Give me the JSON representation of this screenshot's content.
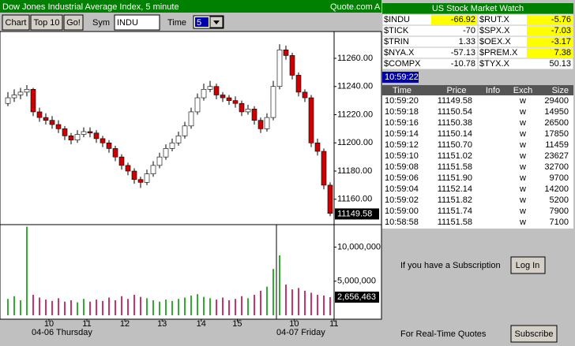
{
  "window": {
    "title": "Dow Jones Industrial Average Index, 5 minute",
    "source": "Quote.com",
    "corner": "A"
  },
  "toolbar": {
    "buttons": [
      "Chart",
      "Top 10",
      "Go!"
    ],
    "sym_label": "Sym",
    "sym_value": "INDU",
    "time_label": "Time",
    "time_value": "5"
  },
  "chart_data": {
    "type": "candlestick",
    "candles": [
      [
        11228,
        11236,
        11226,
        11232
      ],
      [
        11232,
        11238,
        11229,
        11234
      ],
      [
        11234,
        11239,
        11231,
        11236
      ],
      [
        11236,
        11241,
        11233,
        11238
      ],
      [
        11238,
        11239,
        11219,
        11222
      ],
      [
        11222,
        11225,
        11215,
        11218
      ],
      [
        11218,
        11221,
        11213,
        11216
      ],
      [
        11216,
        11219,
        11210,
        11213
      ],
      [
        11213,
        11216,
        11207,
        11210
      ],
      [
        11210,
        11212,
        11202,
        11205
      ],
      [
        11205,
        11207,
        11199,
        11202
      ],
      [
        11202,
        11209,
        11200,
        11206
      ],
      [
        11206,
        11211,
        11204,
        11208
      ],
      [
        11208,
        11211,
        11204,
        11207
      ],
      [
        11207,
        11209,
        11200,
        11203
      ],
      [
        11203,
        11205,
        11197,
        11200
      ],
      [
        11200,
        11202,
        11193,
        11196
      ],
      [
        11196,
        11198,
        11187,
        11190
      ],
      [
        11190,
        11192,
        11181,
        11184
      ],
      [
        11184,
        11186,
        11177,
        11180
      ],
      [
        11180,
        11182,
        11171,
        11174
      ],
      [
        11174,
        11176,
        11168,
        11172
      ],
      [
        11172,
        11181,
        11170,
        11178
      ],
      [
        11178,
        11187,
        11176,
        11184
      ],
      [
        11184,
        11193,
        11182,
        11190
      ],
      [
        11190,
        11199,
        11188,
        11196
      ],
      [
        11196,
        11203,
        11194,
        11200
      ],
      [
        11200,
        11208,
        11198,
        11205
      ],
      [
        11205,
        11215,
        11203,
        11212
      ],
      [
        11212,
        11225,
        11210,
        11222
      ],
      [
        11222,
        11235,
        11220,
        11232
      ],
      [
        11232,
        11242,
        11230,
        11238
      ],
      [
        11238,
        11244,
        11236,
        11240
      ],
      [
        11240,
        11242,
        11231,
        11234
      ],
      [
        11234,
        11236,
        11229,
        11232
      ],
      [
        11232,
        11234,
        11227,
        11230
      ],
      [
        11230,
        11233,
        11225,
        11228
      ],
      [
        11228,
        11230,
        11219,
        11222
      ],
      [
        11222,
        11227,
        11220,
        11224
      ],
      [
        11224,
        11226,
        11213,
        11216
      ],
      [
        11216,
        11218,
        11207,
        11210
      ],
      [
        11210,
        11221,
        11208,
        11218
      ],
      [
        11218,
        11244,
        11216,
        11240
      ],
      [
        11240,
        11270,
        11238,
        11266
      ],
      [
        11266,
        11269,
        11259,
        11262
      ],
      [
        11262,
        11264,
        11245,
        11248
      ],
      [
        11248,
        11250,
        11233,
        11236
      ],
      [
        11236,
        11238,
        11229,
        11232
      ],
      [
        11232,
        11234,
        11197,
        11200
      ],
      [
        11200,
        11203,
        11191,
        11194
      ],
      [
        11194,
        11196,
        11167,
        11170
      ],
      [
        11170,
        11172,
        11148,
        11150
      ]
    ],
    "volume": [
      2400000,
      2800000,
      2200000,
      13000000,
      3000000,
      2600000,
      2300000,
      2100000,
      2500000,
      2000000,
      2200000,
      1900000,
      2400000,
      2000000,
      2300000,
      2100000,
      2600000,
      2200000,
      2800000,
      2400000,
      3000000,
      2700000,
      2500000,
      2200000,
      2000000,
      2300000,
      2100000,
      2400000,
      2600000,
      2900000,
      3100000,
      2700000,
      2500000,
      2300000,
      2600000,
      2200000,
      2400000,
      2800000,
      2500000,
      3000000,
      3600000,
      4200000,
      6800000,
      8800000,
      4500000,
      3800000,
      4000000,
      3600000,
      3300000,
      3000000,
      2900000,
      2656463
    ],
    "ylim": [
      11142,
      11279
    ],
    "yticks": [
      {
        "value": 11160,
        "label": "11160.00"
      },
      {
        "value": 11180,
        "label": "11180.00"
      },
      {
        "value": 11200,
        "label": "11200.00"
      },
      {
        "value": 11220,
        "label": "11220.00"
      },
      {
        "value": 11240,
        "label": "11240.00"
      },
      {
        "value": 11260,
        "label": "11260.00"
      }
    ],
    "last_price": 11149.58,
    "volume_ylim": [
      0,
      13300000
    ],
    "volume_ticks": [
      {
        "value": 5000000,
        "label": "5,000,000"
      },
      {
        "value": 10000000,
        "label": "10,000,000"
      }
    ],
    "last_volume": {
      "value": 2656463,
      "label": "2,656,463"
    },
    "xticks": [
      {
        "value": 6.5,
        "label": "10"
      },
      {
        "value": 12.5,
        "label": "11"
      },
      {
        "value": 18.5,
        "label": "12"
      },
      {
        "value": 24.4,
        "label": "13"
      },
      {
        "value": 30.6,
        "label": "14"
      },
      {
        "value": 36.3,
        "label": "15"
      },
      {
        "value": 45.3,
        "label": "10"
      },
      {
        "value": 51.6,
        "label": "11"
      }
    ],
    "day_labels": [
      {
        "value": 3.75,
        "label": "04-06 Thursday"
      },
      {
        "value": 42.5,
        "label": "04-07 Friday"
      }
    ],
    "up_color": "#ffffff",
    "down_color": "#cc0000",
    "volume_up_color": "#33aa33",
    "volume_down_color": "#cc3366"
  },
  "market_watch": {
    "title": "US Stock Market Watch",
    "rows": [
      [
        {
          "symbol": "$INDU",
          "value": -66.92,
          "highlight": true
        },
        {
          "symbol": "$RUT.X",
          "value": -5.76,
          "highlight": true
        }
      ],
      [
        {
          "symbol": "$TICK",
          "value": -70,
          "highlight": false
        },
        {
          "symbol": "$SPX.X",
          "value": -7.03,
          "highlight": true
        }
      ],
      [
        {
          "symbol": "$TRIN",
          "value": 1.33,
          "highlight": false
        },
        {
          "symbol": "$OEX.X",
          "value": -3.17,
          "highlight": true
        }
      ],
      [
        {
          "symbol": "$NYA.X",
          "value": -57.13,
          "highlight": false
        },
        {
          "symbol": "$PREM.X",
          "value": 7.38,
          "highlight": true
        }
      ],
      [
        {
          "symbol": "$COMPX",
          "value": -10.78,
          "highlight": false
        },
        {
          "symbol": "$TYX.X",
          "value": 50.13,
          "highlight": false
        }
      ]
    ]
  },
  "clock": "10:59:22",
  "trades": {
    "columns": [
      "Time",
      "Price",
      "Info",
      "Exch",
      "Size"
    ],
    "rows": [
      {
        "time": "10:59:20",
        "price": "11149.58",
        "exch": "w",
        "size": 29400
      },
      {
        "time": "10:59:18",
        "price": "11150.54",
        "exch": "w",
        "size": 14950
      },
      {
        "time": "10:59:16",
        "price": "11150.38",
        "exch": "w",
        "size": 26500
      },
      {
        "time": "10:59:14",
        "price": "11150.14",
        "exch": "w",
        "size": 17850
      },
      {
        "time": "10:59:12",
        "price": "11150.70",
        "exch": "w",
        "size": 11459
      },
      {
        "time": "10:59:10",
        "price": "11151.02",
        "exch": "w",
        "size": 23627
      },
      {
        "time": "10:59:08",
        "price": "11151.58",
        "exch": "w",
        "size": 32700
      },
      {
        "time": "10:59:06",
        "price": "11151.90",
        "exch": "w",
        "size": 9700
      },
      {
        "time": "10:59:04",
        "price": "11152.14",
        "exch": "w",
        "size": 14200
      },
      {
        "time": "10:59:02",
        "price": "11151.82",
        "exch": "w",
        "size": 5200
      },
      {
        "time": "10:59:00",
        "price": "11151.74",
        "exch": "w",
        "size": 7900
      },
      {
        "time": "10:58:58",
        "price": "11151.58",
        "exch": "w",
        "size": 7100
      }
    ]
  },
  "subscribe": {
    "login_text": "If you have a Subscription",
    "login_button": "Log In",
    "realtime_text": "For Real-Time Quotes",
    "subscribe_button": "Subscribe"
  }
}
